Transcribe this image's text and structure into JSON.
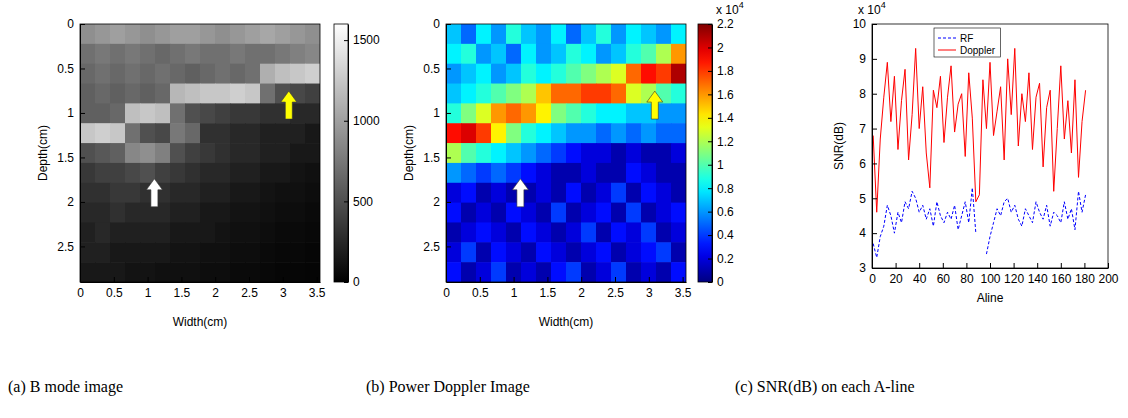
{
  "chart_data": [
    {
      "type": "heatmap",
      "title": "(a) B mode image",
      "x_label": "Width(cm)",
      "y_label": "Depth(cm)",
      "xlim": [
        0,
        3.55
      ],
      "xticks": [
        0,
        0.5,
        1,
        1.5,
        2,
        2.5,
        3,
        3.5
      ],
      "ylim": [
        2.9,
        0
      ],
      "yticks": [
        0,
        0.5,
        1,
        1.5,
        2,
        2.5
      ],
      "color": "gray",
      "colorbar": {
        "range": [
          0,
          1600
        ],
        "ticks": [
          0,
          500,
          1000,
          1500
        ]
      },
      "cells": [
        [
          900,
          950,
          1000,
          950,
          900,
          950,
          1000,
          1000,
          950,
          900,
          950,
          1000,
          1050,
          1000,
          950,
          900
        ],
        [
          700,
          750,
          700,
          750,
          700,
          650,
          700,
          750,
          700,
          700,
          750,
          700,
          700,
          750,
          800,
          850
        ],
        [
          650,
          700,
          650,
          700,
          650,
          700,
          650,
          600,
          650,
          700,
          650,
          700,
          1100,
          1200,
          1250,
          1300
        ],
        [
          600,
          650,
          600,
          650,
          600,
          650,
          1150,
          1200,
          1250,
          1250,
          1300,
          1250,
          700,
          500,
          450,
          400
        ],
        [
          600,
          600,
          650,
          1200,
          1250,
          1200,
          700,
          500,
          450,
          400,
          350,
          350,
          300,
          300,
          250,
          250
        ],
        [
          1250,
          1300,
          1250,
          700,
          500,
          450,
          750,
          650,
          300,
          300,
          250,
          250,
          200,
          200,
          200,
          150
        ],
        [
          500,
          550,
          600,
          850,
          900,
          800,
          500,
          400,
          350,
          300,
          250,
          250,
          200,
          200,
          150,
          150
        ],
        [
          350,
          400,
          400,
          450,
          500,
          400,
          350,
          300,
          250,
          250,
          200,
          200,
          150,
          150,
          120,
          100
        ],
        [
          300,
          300,
          350,
          350,
          300,
          300,
          250,
          250,
          200,
          200,
          150,
          150,
          120,
          100,
          100,
          80
        ],
        [
          250,
          250,
          300,
          250,
          250,
          250,
          200,
          200,
          150,
          150,
          120,
          120,
          100,
          80,
          80,
          60
        ],
        [
          200,
          250,
          200,
          200,
          200,
          200,
          150,
          150,
          150,
          120,
          100,
          100,
          80,
          60,
          60,
          50
        ],
        [
          200,
          200,
          150,
          150,
          150,
          150,
          120,
          120,
          100,
          100,
          80,
          80,
          60,
          50,
          50,
          40
        ],
        [
          150,
          150,
          150,
          120,
          120,
          100,
          100,
          100,
          80,
          80,
          60,
          60,
          50,
          40,
          40,
          30
        ]
      ]
    },
    {
      "type": "heatmap",
      "title": "(b) Power Doppler Image",
      "x_label": "Width(cm)",
      "y_label": "Depth(cm)",
      "xlim": [
        0,
        3.55
      ],
      "xticks": [
        0,
        0.5,
        1,
        1.5,
        2,
        2.5,
        3,
        3.5
      ],
      "ylim": [
        2.9,
        0
      ],
      "yticks": [
        0,
        0.5,
        1,
        1.5,
        2,
        2.5
      ],
      "color": "jet",
      "colorbar": {
        "range": [
          0,
          2.2
        ],
        "ticks": [
          0,
          0.2,
          0.4,
          0.6,
          0.8,
          1,
          1.2,
          1.4,
          1.6,
          1.8,
          2,
          2.2
        ],
        "multiplier": {
          "base": "x 10",
          "exponent": "4"
        }
      },
      "cells": [
        [
          0.7,
          0.5,
          0.8,
          0.6,
          0.9,
          0.7,
          0.6,
          0.8,
          0.5,
          0.7,
          0.9,
          0.6,
          0.8,
          0.7,
          0.6,
          0.8
        ],
        [
          0.8,
          0.9,
          0.6,
          0.7,
          0.5,
          0.8,
          0.6,
          0.7,
          0.9,
          0.8,
          0.6,
          0.7,
          0.9,
          1.0,
          1.2,
          1.6
        ],
        [
          0.6,
          0.7,
          0.8,
          0.6,
          0.7,
          0.9,
          0.8,
          0.9,
          1.0,
          1.1,
          1.2,
          1.3,
          1.7,
          1.9,
          1.8,
          2.1
        ],
        [
          0.7,
          0.8,
          0.9,
          1.0,
          1.1,
          1.2,
          1.5,
          1.7,
          1.7,
          1.8,
          1.8,
          1.7,
          1.3,
          1.2,
          1.0,
          0.9
        ],
        [
          0.9,
          1.1,
          1.3,
          1.6,
          1.7,
          1.6,
          1.4,
          1.1,
          1.0,
          0.9,
          0.8,
          0.8,
          0.7,
          0.7,
          0.6,
          0.6
        ],
        [
          1.9,
          2.0,
          1.8,
          1.4,
          1.1,
          0.9,
          0.8,
          0.7,
          0.6,
          0.6,
          0.5,
          0.6,
          0.5,
          0.6,
          0.5,
          0.5
        ],
        [
          1.2,
          1.0,
          0.9,
          0.8,
          0.7,
          0.6,
          0.5,
          0.4,
          0.3,
          0.2,
          0.2,
          0.1,
          0.2,
          0.1,
          0.1,
          0.2
        ],
        [
          0.6,
          0.5,
          0.4,
          0.5,
          0.4,
          0.3,
          0.2,
          0.1,
          0.1,
          0.2,
          0.1,
          0.1,
          0.3,
          0.2,
          0.1,
          0.1
        ],
        [
          0.2,
          0.3,
          0.1,
          0.2,
          0.1,
          0.1,
          0.2,
          0.1,
          0.3,
          0.1,
          0.2,
          0.4,
          0.1,
          0.3,
          0.2,
          0.1
        ],
        [
          0.3,
          0.1,
          0.2,
          0.1,
          0.3,
          0.2,
          0.1,
          0.4,
          0.1,
          0.2,
          0.3,
          0.1,
          0.4,
          0.1,
          0.2,
          0.3
        ],
        [
          0.1,
          0.2,
          0.3,
          0.2,
          0.1,
          0.3,
          0.2,
          0.1,
          0.2,
          0.4,
          0.1,
          0.3,
          0.2,
          0.4,
          0.1,
          0.2
        ],
        [
          0.2,
          0.4,
          0.1,
          0.3,
          0.2,
          0.1,
          0.3,
          0.2,
          0.1,
          0.2,
          0.3,
          0.1,
          0.2,
          0.3,
          0.4,
          0.1
        ],
        [
          0.3,
          0.1,
          0.2,
          0.4,
          0.1,
          0.2,
          0.1,
          0.3,
          0.4,
          0.1,
          0.2,
          0.4,
          0.1,
          0.2,
          0.1,
          0.3
        ]
      ]
    },
    {
      "type": "line",
      "title": "(c) SNR(dB) on each A-line",
      "x_label": "Aline",
      "y_label": "SNR(dB)",
      "xlim": [
        0,
        200
      ],
      "xticks": [
        0,
        20,
        40,
        60,
        80,
        100,
        120,
        140,
        160,
        180,
        200
      ],
      "ylim": [
        3,
        10
      ],
      "yticks": [
        3,
        4,
        5,
        6,
        7,
        8,
        9,
        10
      ],
      "y_multiplier": {
        "base": "x 10",
        "exponent": "4"
      },
      "legend": "top-left",
      "x": [
        1,
        4,
        7,
        10,
        13,
        16,
        19,
        22,
        25,
        28,
        31,
        34,
        37,
        40,
        43,
        46,
        49,
        52,
        55,
        58,
        61,
        64,
        67,
        70,
        73,
        76,
        79,
        82,
        85,
        88,
        91,
        94,
        97,
        100,
        103,
        106,
        109,
        112,
        115,
        118,
        121,
        124,
        127,
        130,
        133,
        136,
        139,
        142,
        145,
        148,
        151,
        154,
        157,
        160,
        163,
        166,
        169,
        172,
        175,
        178,
        181
      ],
      "series": [
        {
          "name": "RF",
          "color": "#0000ff",
          "line_style": "dashed",
          "values": [
            3.7,
            3.3,
            3.9,
            4.2,
            4.8,
            4.5,
            4.0,
            4.6,
            4.3,
            4.9,
            4.7,
            5.2,
            5.0,
            4.6,
            4.8,
            4.4,
            4.7,
            4.2,
            4.9,
            4.5,
            4.3,
            4.6,
            4.4,
            4.8,
            4.1,
            4.5,
            4.9,
            4.3,
            5.3,
            4.0,
            null,
            null,
            3.4,
            3.9,
            4.3,
            4.7,
            4.5,
            4.9,
            5.0,
            4.6,
            4.8,
            4.4,
            4.2,
            4.7,
            4.5,
            4.3,
            4.9,
            4.6,
            4.4,
            4.8,
            4.2,
            4.6,
            4.5,
            4.3,
            4.9,
            4.4,
            4.7,
            4.1,
            5.2,
            4.6,
            5.1
          ]
        },
        {
          "name": "Doppler",
          "color": "#ff0000",
          "line_style": "solid",
          "values": [
            6.8,
            4.6,
            6.7,
            7.9,
            8.9,
            7.2,
            8.5,
            6.4,
            7.8,
            8.7,
            6.1,
            7.4,
            9.3,
            7.0,
            8.2,
            6.3,
            5.3,
            8.1,
            7.6,
            8.5,
            6.6,
            7.9,
            8.8,
            6.9,
            7.7,
            8.0,
            6.2,
            8.6,
            7.3,
            4.9,
            5.1,
            8.4,
            7.0,
            8.9,
            6.8,
            7.5,
            8.2,
            6.1,
            9.0,
            7.4,
            9.3,
            6.5,
            8.0,
            7.2,
            8.6,
            6.4,
            7.9,
            8.3,
            5.9,
            7.6,
            8.1,
            5.2,
            7.0,
            8.8,
            6.7,
            7.8,
            6.3,
            8.4,
            5.6,
            7.2,
            8.1
          ]
        }
      ]
    }
  ]
}
